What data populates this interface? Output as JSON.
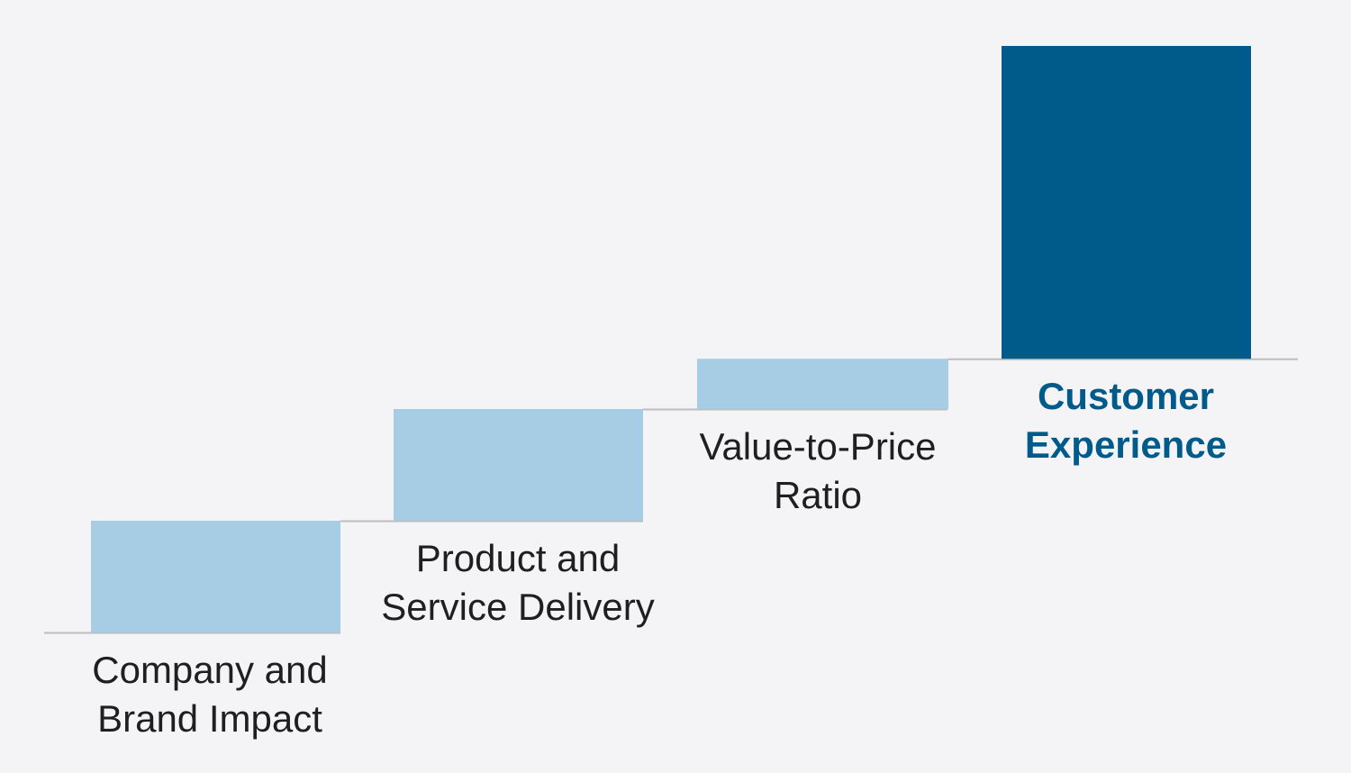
{
  "chart_data": {
    "type": "bar",
    "style": "staircase",
    "categories": [
      [
        "Company and",
        "Brand Impact"
      ],
      [
        "Product and",
        "Service Delivery"
      ],
      [
        "Value-to-Price",
        "Ratio"
      ],
      [
        "Customer",
        "Experience"
      ]
    ],
    "values": [
      1.0,
      1.0,
      0.45,
      2.8
    ],
    "highlight_index": 3,
    "colors": {
      "step": "#a6cde4",
      "highlight": "#005b8b",
      "baseline": "#bdbdbd",
      "label": "#1f1f1f",
      "highlight_label": "#005b8b",
      "background": "#f4f3f5"
    },
    "title": "",
    "xlabel": "",
    "ylabel": "",
    "grid": false,
    "legend": "none"
  }
}
